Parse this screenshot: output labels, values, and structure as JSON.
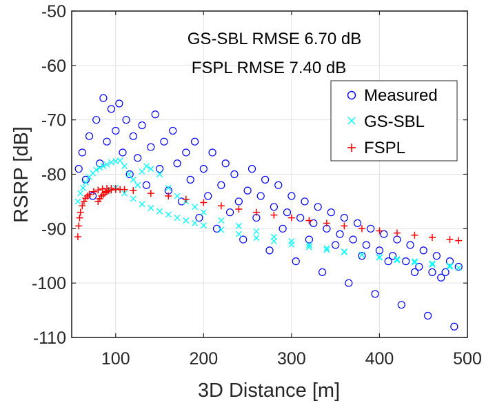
{
  "chart_data": {
    "type": "scatter",
    "title": "",
    "xlabel": "3D Distance [m]",
    "ylabel": "RSRP [dB]",
    "xlim": [
      50,
      500
    ],
    "ylim": [
      -110,
      -50
    ],
    "xticks": [
      100,
      200,
      300,
      400,
      500
    ],
    "yticks": [
      -110,
      -100,
      -90,
      -80,
      -70,
      -60,
      -50
    ],
    "xtick_labels": [
      "100",
      "200",
      "300",
      "400",
      "500"
    ],
    "ytick_labels": [
      "-110",
      "-100",
      "-90",
      "-80",
      "-70",
      "-60",
      "-50"
    ],
    "grid": true,
    "legend_position": "top-right",
    "annotations": [
      "GS-SBL RMSE 6.70 dB",
      "FSPL RMSE 7.40 dB"
    ],
    "series": [
      {
        "name": "Measured",
        "marker": "circle",
        "color": "#0000ff",
        "description_points": "approx. scattered cloud; sampled points listed",
        "x": [
          58,
          62,
          66,
          70,
          74,
          78,
          82,
          86,
          90,
          95,
          100,
          104,
          108,
          112,
          116,
          120,
          125,
          130,
          135,
          140,
          145,
          150,
          155,
          160,
          165,
          170,
          175,
          180,
          185,
          190,
          195,
          200,
          205,
          210,
          215,
          220,
          225,
          230,
          235,
          240,
          245,
          250,
          255,
          260,
          265,
          270,
          275,
          280,
          285,
          290,
          295,
          300,
          305,
          310,
          315,
          320,
          325,
          330,
          335,
          340,
          345,
          350,
          355,
          360,
          365,
          370,
          375,
          380,
          385,
          390,
          395,
          400,
          405,
          410,
          415,
          420,
          425,
          430,
          435,
          440,
          445,
          450,
          455,
          460,
          465,
          470,
          475,
          480,
          485,
          490
        ],
        "y": [
          -79,
          -76,
          -81,
          -73,
          -84,
          -70,
          -78,
          -66,
          -74,
          -68,
          -72,
          -67,
          -76,
          -70,
          -80,
          -73,
          -77,
          -71,
          -82,
          -75,
          -69,
          -79,
          -74,
          -83,
          -72,
          -78,
          -85,
          -76,
          -81,
          -74,
          -88,
          -79,
          -84,
          -76,
          -90,
          -82,
          -78,
          -87,
          -80,
          -85,
          -92,
          -83,
          -79,
          -88,
          -84,
          -81,
          -94,
          -86,
          -82,
          -90,
          -87,
          -84,
          -96,
          -88,
          -85,
          -92,
          -89,
          -86,
          -98,
          -90,
          -87,
          -93,
          -91,
          -88,
          -100,
          -92,
          -89,
          -95,
          -93,
          -90,
          -102,
          -94,
          -91,
          -96,
          -95,
          -92,
          -104,
          -96,
          -93,
          -98,
          -97,
          -94,
          -106,
          -98,
          -95,
          -99,
          -98,
          -96,
          -108,
          -97
        ]
      },
      {
        "name": "GS-SBL",
        "marker": "x",
        "color": "#00ffff",
        "x": [
          57,
          60,
          63,
          66,
          70,
          74,
          78,
          82,
          86,
          90,
          95,
          100,
          105,
          110,
          115,
          120,
          125,
          130,
          135,
          140,
          150,
          160,
          170,
          180,
          190,
          200,
          220,
          240,
          260,
          280,
          300,
          320,
          340,
          360,
          380,
          400,
          420,
          440,
          460,
          480,
          490
        ],
        "y": [
          -85,
          -83.5,
          -82.5,
          -81.5,
          -80.5,
          -79.8,
          -79.2,
          -78.8,
          -78.5,
          -78.2,
          -77.8,
          -77.6,
          -77.5,
          -78.5,
          -80,
          -81,
          -82,
          -79.5,
          -78.5,
          -79,
          -80,
          -82.5,
          -84,
          -85,
          -86,
          -87,
          -88.5,
          -89.5,
          -90.5,
          -91.5,
          -92.3,
          -93,
          -93.6,
          -94.2,
          -94.8,
          -95.3,
          -95.8,
          -96.2,
          -96.6,
          -97,
          -97.2
        ]
      },
      {
        "name": "FSPL",
        "marker": "plus",
        "color": "#ff0000",
        "x": [
          57,
          58,
          59,
          60,
          62,
          64,
          66,
          68,
          70,
          75,
          80,
          85,
          90,
          95,
          100,
          110,
          120,
          140,
          160,
          180,
          200,
          220,
          240,
          260,
          280,
          300,
          320,
          340,
          360,
          380,
          400,
          420,
          440,
          460,
          480,
          490
        ],
        "y": [
          -91.5,
          -89.5,
          -88,
          -87,
          -85.8,
          -85,
          -84.4,
          -84,
          -83.7,
          -83.2,
          -82.9,
          -82.7,
          -82.6,
          -82.6,
          -82.6,
          -82.8,
          -83,
          -83.5,
          -84,
          -84.6,
          -85.2,
          -85.8,
          -86.4,
          -87,
          -87.5,
          -88,
          -88.5,
          -89,
          -89.5,
          -90,
          -90.4,
          -90.8,
          -91.2,
          -91.6,
          -92,
          -92.2
        ]
      },
      {
        "name": "GS-SBL",
        "legend": false,
        "marker": "x",
        "color": "#00ffff",
        "x": [
          92,
          100,
          110,
          120,
          130,
          140,
          150,
          160,
          170,
          180,
          190,
          200,
          220,
          240,
          260,
          280,
          300,
          320,
          340,
          360,
          380,
          400,
          420,
          440,
          460,
          480
        ],
        "y": [
          -83,
          -82.5,
          -83.5,
          -84.5,
          -85.5,
          -86.2,
          -86.8,
          -87.4,
          -88,
          -88.5,
          -89,
          -89.4,
          -90.2,
          -91,
          -91.7,
          -92.3,
          -92.9,
          -93.4,
          -93.9,
          -94.3,
          -94.8,
          -95.2,
          -95.6,
          -96,
          -96.4,
          -96.8
        ]
      },
      {
        "name": "FSPL",
        "legend": false,
        "marker": "plus",
        "color": "#ff0000",
        "x": [
          80,
          82,
          84,
          86,
          88,
          90,
          92,
          95,
          100,
          105
        ],
        "y": [
          -85,
          -84.5,
          -84,
          -83.7,
          -83.4,
          -83.2,
          -83,
          -82.9,
          -82.8,
          -82.8
        ]
      }
    ]
  }
}
